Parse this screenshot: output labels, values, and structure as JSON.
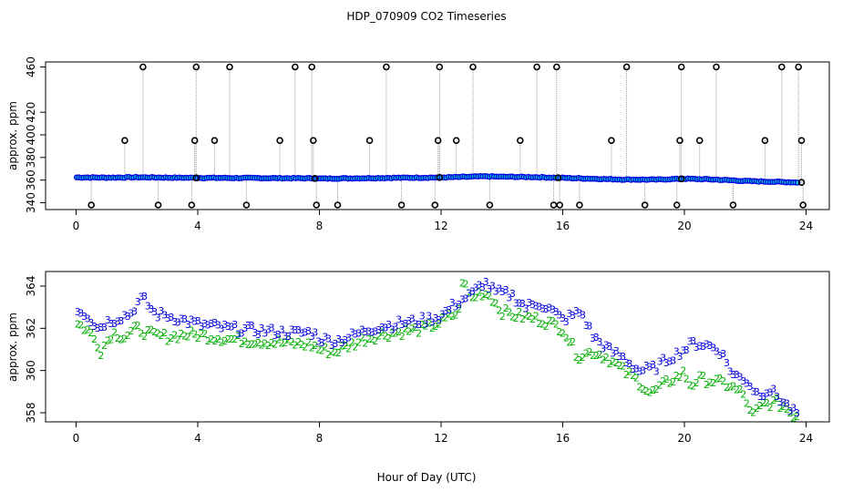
{
  "title": "HDP_070909  CO2 Timeseries",
  "xlabel": "Hour of Day (UTC)",
  "colors": {
    "series1": "#000000",
    "series2": "#00b000",
    "series3": "#0000e0",
    "fill": "#00c8d0"
  },
  "chart_data": [
    {
      "type": "scatter",
      "ylabel": "approx. ppm",
      "xlim": [
        0,
        24
      ],
      "ylim": [
        338,
        462
      ],
      "xticks": [
        "0",
        "4",
        "8",
        "12",
        "16",
        "20",
        "24"
      ],
      "yticks": [
        "340",
        "360",
        "380",
        "400",
        "420",
        "460"
      ],
      "ytick_values": [
        340,
        360,
        380,
        400,
        420,
        460
      ],
      "baseline": [
        [
          0,
          362.4
        ],
        [
          1,
          362.2
        ],
        [
          2,
          362.5
        ],
        [
          3,
          362.2
        ],
        [
          4,
          362.0
        ],
        [
          6,
          361.8
        ],
        [
          7.8,
          361.6
        ],
        [
          8,
          361.3
        ],
        [
          9,
          361.6
        ],
        [
          10,
          361.9
        ],
        [
          11,
          362.1
        ],
        [
          12,
          362.3
        ],
        [
          13,
          363.0
        ],
        [
          13.5,
          363.3
        ],
        [
          14,
          363.0
        ],
        [
          15,
          362.7
        ],
        [
          16,
          362.0
        ],
        [
          17,
          361.2
        ],
        [
          18,
          360.5
        ],
        [
          19,
          360.4
        ],
        [
          20,
          361.2
        ],
        [
          21,
          360.5
        ],
        [
          22,
          359.2
        ],
        [
          23,
          358.5
        ],
        [
          23.7,
          358.0
        ]
      ],
      "spikes": [
        {
          "x": 0.5,
          "y": 338
        },
        {
          "x": 1.6,
          "y": 395
        },
        {
          "x": 2.2,
          "y": 460
        },
        {
          "x": 2.7,
          "y": 338
        },
        {
          "x": 3.8,
          "y": 338
        },
        {
          "x": 3.9,
          "y": 395
        },
        {
          "x": 3.95,
          "y": 460
        },
        {
          "x": 4.55,
          "y": 395
        },
        {
          "x": 5.05,
          "y": 460
        },
        {
          "x": 5.6,
          "y": 338
        },
        {
          "x": 6.7,
          "y": 395
        },
        {
          "x": 7.2,
          "y": 460
        },
        {
          "x": 7.75,
          "y": 460
        },
        {
          "x": 7.8,
          "y": 395
        },
        {
          "x": 7.9,
          "y": 338
        },
        {
          "x": 8.6,
          "y": 338
        },
        {
          "x": 9.65,
          "y": 395
        },
        {
          "x": 10.2,
          "y": 460
        },
        {
          "x": 10.7,
          "y": 338
        },
        {
          "x": 11.8,
          "y": 338
        },
        {
          "x": 11.9,
          "y": 395
        },
        {
          "x": 11.95,
          "y": 460
        },
        {
          "x": 12.5,
          "y": 395
        },
        {
          "x": 13.05,
          "y": 460
        },
        {
          "x": 13.6,
          "y": 338
        },
        {
          "x": 14.6,
          "y": 395
        },
        {
          "x": 15.15,
          "y": 460
        },
        {
          "x": 15.7,
          "y": 338
        },
        {
          "x": 15.8,
          "y": 460
        },
        {
          "x": 15.9,
          "y": 338
        },
        {
          "x": 16.55,
          "y": 338
        },
        {
          "x": 17.6,
          "y": 395
        },
        {
          "x": 18.1,
          "y": 460
        },
        {
          "x": 18.7,
          "y": 338
        },
        {
          "x": 19.75,
          "y": 338
        },
        {
          "x": 19.85,
          "y": 395
        },
        {
          "x": 19.9,
          "y": 460
        },
        {
          "x": 20.5,
          "y": 395
        },
        {
          "x": 21.05,
          "y": 460
        },
        {
          "x": 21.6,
          "y": 338
        },
        {
          "x": 22.65,
          "y": 395
        },
        {
          "x": 23.2,
          "y": 460
        },
        {
          "x": 23.75,
          "y": 460
        },
        {
          "x": 23.85,
          "y": 395
        },
        {
          "x": 23.9,
          "y": 338
        }
      ]
    },
    {
      "type": "scatter",
      "ylabel": "approx. ppm",
      "xlim": [
        0,
        24
      ],
      "ylim": [
        357.5,
        364.8
      ],
      "xticks": [
        "0",
        "4",
        "8",
        "12",
        "16",
        "20",
        "24"
      ],
      "yticks": [
        "358",
        "360",
        "362",
        "364"
      ],
      "ytick_values": [
        358,
        360,
        362,
        364
      ],
      "series": [
        {
          "name": "2",
          "label": "2",
          "values": [
            [
              0.1,
              362.2
            ],
            [
              0.4,
              361.9
            ],
            [
              0.7,
              361.3
            ],
            [
              0.8,
              360.9
            ],
            [
              1.2,
              361.8
            ],
            [
              1.6,
              361.6
            ],
            [
              2.0,
              362.0
            ],
            [
              2.5,
              361.7
            ],
            [
              3.0,
              361.6
            ],
            [
              3.5,
              361.7
            ],
            [
              4.0,
              361.7
            ],
            [
              5,
              361.5
            ],
            [
              6,
              361.4
            ],
            [
              7,
              361.3
            ],
            [
              7.8,
              361.2
            ],
            [
              8,
              361.0
            ],
            [
              8.5,
              360.9
            ],
            [
              9,
              361.2
            ],
            [
              9.5,
              361.5
            ],
            [
              10,
              361.7
            ],
            [
              10.5,
              361.8
            ],
            [
              11,
              361.9
            ],
            [
              11.5,
              362.0
            ],
            [
              12,
              362.3
            ],
            [
              12.6,
              362.8
            ],
            [
              12.7,
              364.3
            ],
            [
              13,
              363.4
            ],
            [
              13.3,
              363.7
            ],
            [
              13.6,
              363.6
            ],
            [
              14,
              362.8
            ],
            [
              14.5,
              362.6
            ],
            [
              15,
              362.5
            ],
            [
              15.5,
              362.3
            ],
            [
              16,
              362.0
            ],
            [
              16.5,
              360.7
            ],
            [
              17,
              360.9
            ],
            [
              17.5,
              360.6
            ],
            [
              18,
              360.0
            ],
            [
              18.5,
              359.5
            ],
            [
              18.9,
              358.9
            ],
            [
              19.5,
              359.5
            ],
            [
              20,
              359.9
            ],
            [
              20.2,
              359.3
            ],
            [
              20.5,
              359.6
            ],
            [
              21,
              359.5
            ],
            [
              21.5,
              359.3
            ],
            [
              22,
              358.8
            ],
            [
              22.2,
              357.8
            ],
            [
              22.6,
              358.4
            ],
            [
              23,
              358.5
            ],
            [
              23.3,
              358.3
            ],
            [
              23.6,
              357.9
            ]
          ]
        },
        {
          "name": "3",
          "label": "3",
          "values": [
            [
              0.1,
              362.9
            ],
            [
              0.4,
              362.6
            ],
            [
              0.7,
              362.0
            ],
            [
              1.0,
              362.3
            ],
            [
              1.4,
              362.5
            ],
            [
              1.8,
              362.7
            ],
            [
              2.0,
              363.2
            ],
            [
              2.2,
              363.4
            ],
            [
              2.6,
              362.7
            ],
            [
              3.0,
              362.6
            ],
            [
              3.5,
              362.4
            ],
            [
              4.0,
              362.2
            ],
            [
              5,
              362.0
            ],
            [
              6,
              361.9
            ],
            [
              7,
              361.8
            ],
            [
              7.8,
              361.8
            ],
            [
              8,
              361.5
            ],
            [
              8.5,
              361.4
            ],
            [
              9,
              361.6
            ],
            [
              9.5,
              361.9
            ],
            [
              10,
              362.1
            ],
            [
              10.5,
              362.2
            ],
            [
              11,
              362.3
            ],
            [
              11.5,
              362.4
            ],
            [
              12,
              362.6
            ],
            [
              12.5,
              363.2
            ],
            [
              13,
              363.6
            ],
            [
              13.4,
              364.2
            ],
            [
              13.8,
              363.7
            ],
            [
              14.3,
              363.6
            ],
            [
              14.8,
              363.0
            ],
            [
              15.2,
              363.2
            ],
            [
              15.6,
              362.9
            ],
            [
              16,
              362.4
            ],
            [
              16.6,
              362.8
            ],
            [
              17,
              361.6
            ],
            [
              17.5,
              361.0
            ],
            [
              18,
              360.6
            ],
            [
              18.5,
              360.0
            ],
            [
              19,
              360.1
            ],
            [
              19.5,
              360.6
            ],
            [
              20,
              361.0
            ],
            [
              20.3,
              361.3
            ],
            [
              20.8,
              361.2
            ],
            [
              21.2,
              360.9
            ],
            [
              21.6,
              359.8
            ],
            [
              22,
              359.6
            ],
            [
              22.4,
              358.9
            ],
            [
              22.8,
              359.1
            ],
            [
              23.2,
              358.6
            ],
            [
              23.6,
              358.0
            ]
          ]
        }
      ]
    }
  ]
}
